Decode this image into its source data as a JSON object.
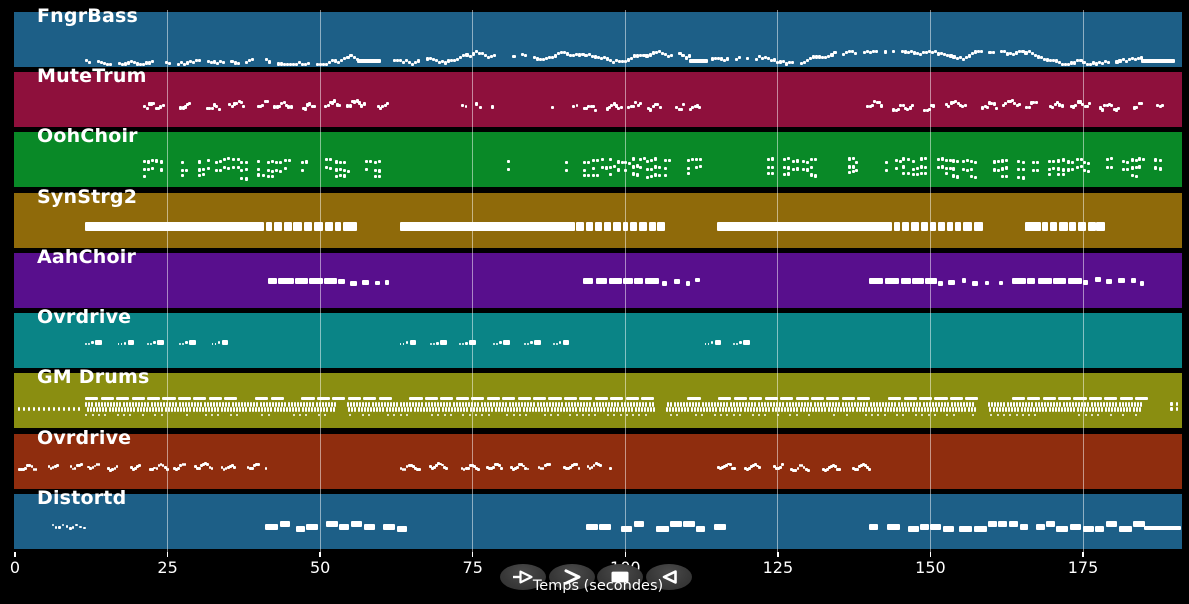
{
  "window": {
    "background": "#000000",
    "description_label": "MIDI track timeline player"
  },
  "axis": {
    "xlabel": "Temps (secondes)",
    "ticks": [
      0,
      25,
      50,
      75,
      100,
      125,
      150,
      175
    ],
    "tick_color": "#ffffff",
    "gridline_color": "rgba(255,255,255,0.5)"
  },
  "controls": {
    "button_fill": "#3b3b3b",
    "glyph_color": "#ffffff",
    "buttons": [
      {
        "id": "play",
        "icon": "play-outline-with-lead-line"
      },
      {
        "id": "fast-forward",
        "icon": "chevron-right"
      },
      {
        "id": "stop",
        "icon": "stop-square"
      },
      {
        "id": "rewind",
        "icon": "triangle-left-outline"
      }
    ]
  },
  "chart_data": {
    "type": "timeline",
    "subtype": "midi-piano-roll-overview",
    "title": "",
    "xlabel": "Temps (secondes)",
    "x_ticks": [
      0,
      25,
      50,
      75,
      100,
      125,
      150,
      175
    ],
    "x_range": [
      0,
      191
    ],
    "grid": "vertical gridlines at each 25 s tick",
    "legend": "none",
    "note_color": "#ffffff",
    "tracks": [
      {
        "label": "FngrBass",
        "color": "#1d5f87",
        "style": "bass-melody",
        "active_segments_sec": [
          [
            11.5,
            56
          ],
          [
            61,
            110.5
          ],
          [
            114,
            184.5
          ]
        ],
        "sustain_bars_sec": [
          [
            56,
            60
          ],
          [
            110.5,
            113.5
          ],
          [
            184.5,
            190
          ]
        ]
      },
      {
        "label": "MuteTrum",
        "color": "#8e103c",
        "style": "staccato-runs",
        "active_segments_sec": [
          [
            21,
            61
          ],
          [
            73,
            92
          ],
          [
            93,
            112
          ],
          [
            139.5,
            188
          ]
        ],
        "segment_density": [
          "runs",
          "sparse",
          "runs",
          "runs"
        ]
      },
      {
        "label": "OohChoir",
        "color": "#098927",
        "style": "stacked-chords",
        "active_segments_sec": [
          [
            21,
            60
          ],
          [
            73,
            92
          ],
          [
            93,
            112
          ],
          [
            122,
            187
          ]
        ],
        "segment_density": [
          "dense",
          "sparse",
          "dense",
          "dense"
        ]
      },
      {
        "label": "SynStrg2",
        "color": "#8f6a0a",
        "style": "sustain-bars",
        "active_segments_sec": [
          [
            11.5,
            56
          ],
          [
            63,
            106.5
          ],
          [
            115,
            158.5
          ],
          [
            165.5,
            178.5
          ]
        ]
      },
      {
        "label": "AahChoir",
        "color": "#580f8d",
        "style": "pad-blocks",
        "active_segments_sec": [
          [
            41.5,
            61.5
          ],
          [
            93,
            113.5
          ],
          [
            140,
            185
          ]
        ]
      },
      {
        "label": "Ovrdrive",
        "color": "#0a8486",
        "style": "lick-clusters",
        "active_segments_sec": [
          [
            11.5,
            37
          ],
          [
            63,
            89
          ],
          [
            113,
            120
          ]
        ]
      },
      {
        "label": "GM Drums",
        "color": "#8a8e11",
        "style": "drum-grid",
        "lead_in_sec": [
          0.5,
          10.5
        ],
        "active_segments_sec": [
          [
            11.5,
            184.5
          ]
        ],
        "phrase_breaks_sec": [
          [
            52.3,
            54.2
          ],
          [
            104.8,
            106.6
          ],
          [
            157.3,
            159.2
          ]
        ],
        "tail_hits_sec": [
          189.3,
          190.2
        ]
      },
      {
        "label": "Ovrdrive",
        "color": "#8f2d0e",
        "style": "riff-runs",
        "active_segments_sec": [
          [
            0.5,
            41
          ],
          [
            63,
            97.5
          ],
          [
            115,
            140
          ]
        ]
      },
      {
        "label": "Distortd",
        "color": "#1d5f87",
        "style": "power-chords",
        "intro_riff_sec": [
          6,
          11.5
        ],
        "active_segments_sec": [
          [
            41,
            63.5
          ],
          [
            93.5,
            103.5
          ],
          [
            105,
            115
          ],
          [
            140,
            185
          ]
        ],
        "sustain_bars_sec": [
          [
            185,
            191
          ]
        ]
      }
    ]
  }
}
